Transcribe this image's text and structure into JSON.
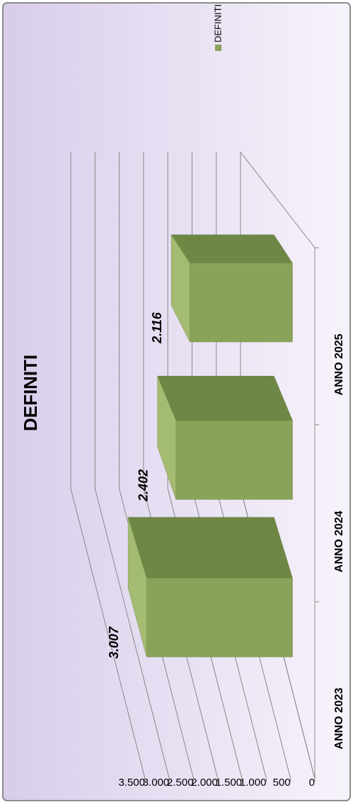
{
  "chart_data": {
    "type": "bar3d",
    "title": "DEFINITI",
    "rotated": true,
    "categories": [
      "ANNO 2023",
      "ANNO 2024",
      "ANNO 2025"
    ],
    "series": [
      {
        "name": "DEFINITI",
        "color": "#8aa35a",
        "values": [
          3007,
          2402,
          2116
        ],
        "value_labels": [
          "3.007",
          "2.402",
          "2.116"
        ]
      }
    ],
    "ylim": [
      0,
      3500
    ],
    "yticks": [
      0,
      500,
      {
        "value": 1000,
        "label": "1.000"
      },
      {
        "value": 1500,
        "label": "1.500"
      },
      {
        "value": 2000,
        "label": "2.000"
      },
      {
        "value": 2500,
        "label": "2.500"
      },
      {
        "value": 3000,
        "label": "3.000"
      },
      {
        "value": 3500,
        "label": "3.500"
      }
    ],
    "grid": true,
    "legend": "right"
  }
}
